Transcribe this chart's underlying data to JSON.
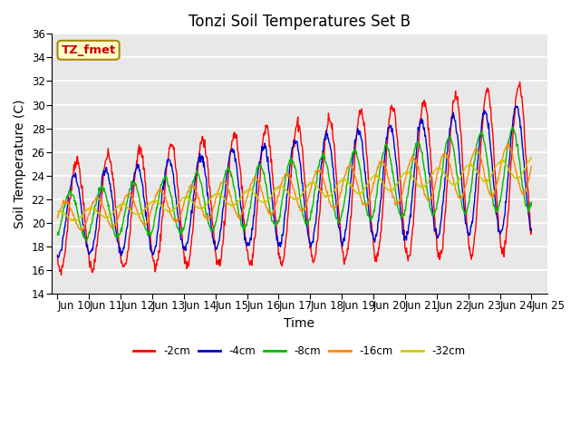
{
  "title": "Tonzi Soil Temperatures Set B",
  "xlabel": "Time",
  "ylabel": "Soil Temperature (C)",
  "ylim": [
    14,
    36
  ],
  "yticks": [
    14,
    16,
    18,
    20,
    22,
    24,
    26,
    28,
    30,
    32,
    34,
    36
  ],
  "xtick_labels": [
    "Jun 10",
    "Jun 11",
    "Jun 12",
    "Jun 13",
    "Jun 14",
    "Jun 15",
    "Jun 16",
    "Jun 17",
    "Jun 18",
    "Jun 19",
    "Jun 20",
    "Jun 21",
    "Jun 22",
    "Jun 23",
    "Jun 24",
    "Jun 25"
  ],
  "label_box_text": "TZ_fmet",
  "label_box_color": "#FFFFCC",
  "label_box_edge": "#AA8800",
  "series_colors": [
    "#FF0000",
    "#0000CC",
    "#00BB00",
    "#FF8800",
    "#CCCC00"
  ],
  "series_labels": [
    "-2cm",
    "-4cm",
    "-8cm",
    "-16cm",
    "-32cm"
  ],
  "plot_bg_color": "#E8E8E8",
  "grid_color": "#FFFFFF",
  "title_fontsize": 12,
  "axis_fontsize": 10,
  "tick_fontsize": 8.5
}
